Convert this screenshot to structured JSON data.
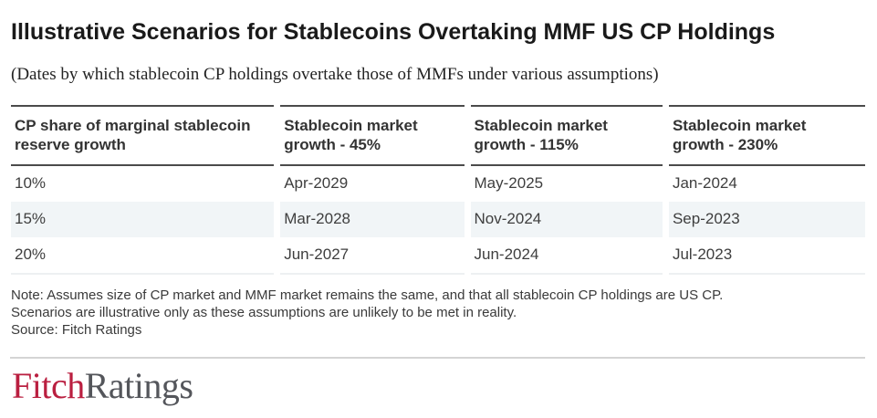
{
  "chart_data": {
    "type": "table",
    "title": "Illustrative Scenarios for Stablecoins Overtaking MMF US CP Holdings",
    "subtitle": "(Dates by which stablecoin CP holdings overtake those of MMFs under various assumptions)",
    "columns": [
      "CP share of marginal stablecoin reserve growth",
      "Stablecoin market growth - 45%",
      "Stablecoin market growth - 115%",
      "Stablecoin market growth - 230%"
    ],
    "rows": [
      [
        "10%",
        "Apr-2029",
        "May-2025",
        "Jan-2024"
      ],
      [
        "15%",
        "Mar-2028",
        "Nov-2024",
        "Sep-2023"
      ],
      [
        "20%",
        "Jun-2027",
        "Jun-2024",
        "Jul-2023"
      ]
    ],
    "note_lines": [
      "Note: Assumes size of CP market and MMF market remains the same, and that all stablecoin CP holdings are US CP.",
      "Scenarios are illustrative only as these assumptions are unlikely to be met in reality.",
      "Source: Fitch Ratings"
    ],
    "legend_position": "none",
    "grid": "off"
  },
  "logo": {
    "part_red": "Fitch",
    "part_gray": "Ratings"
  },
  "colors": {
    "brand_red": "#ba1f40",
    "brand_gray": "#54565b",
    "stripe_bg": "#f1f5f7",
    "header_border": "#4b4b4b",
    "divider": "#d4d4d4"
  }
}
